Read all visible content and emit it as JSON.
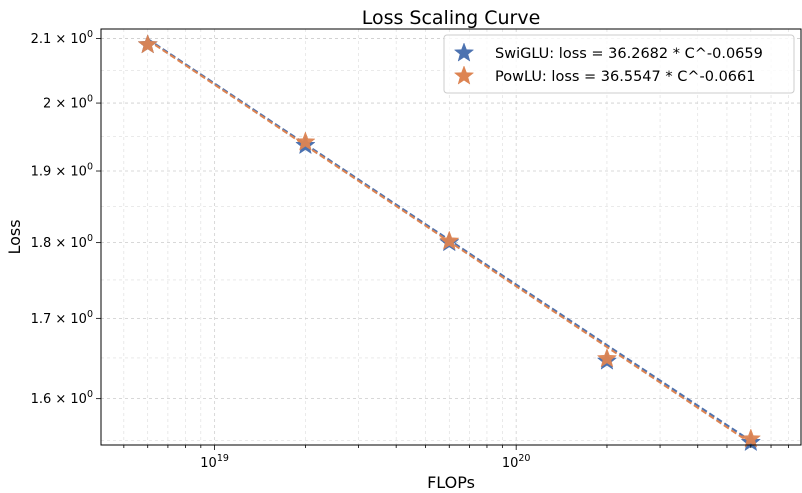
{
  "chart_data": {
    "type": "scatter",
    "title": "Loss Scaling Curve",
    "xlabel": "FLOPs",
    "ylabel": "Loss",
    "xscale": "log",
    "yscale": "log",
    "xlim": [
      4.2e+18,
      8.8e+20
    ],
    "ylim": [
      1.545,
      2.115
    ],
    "grid": true,
    "legend_position": "upper right",
    "x_ticks": [
      {
        "value": 1e+19,
        "base": "10",
        "exp": "19"
      },
      {
        "value": 1e+20,
        "base": "10",
        "exp": "20"
      }
    ],
    "y_ticks": [
      {
        "value": 1.6,
        "mantissa": "1.6",
        "base": "10",
        "exp": "0"
      },
      {
        "value": 1.7,
        "mantissa": "1.7",
        "base": "10",
        "exp": "0"
      },
      {
        "value": 1.8,
        "mantissa": "1.8",
        "base": "10",
        "exp": "0"
      },
      {
        "value": 1.9,
        "mantissa": "1.9",
        "base": "10",
        "exp": "0"
      },
      {
        "value": 2.0,
        "mantissa": "2",
        "base": "10",
        "exp": "0"
      },
      {
        "value": 2.1,
        "mantissa": "2.1",
        "base": "10",
        "exp": "0"
      }
    ],
    "series": [
      {
        "name": "SwiGLU: loss = 36.2682 * C^-0.0659",
        "color": "#4c72b0",
        "marker": "star",
        "fit": {
          "a": 36.2682,
          "b": -0.0659
        },
        "x": [
          6e+18,
          2e+19,
          6e+19,
          2e+20,
          6e+20
        ],
        "y": [
          2.09,
          1.937,
          1.8,
          1.646,
          1.548
        ]
      },
      {
        "name": "PowLU: loss = 36.5547 * C^-0.0661",
        "color": "#dd8452",
        "marker": "star",
        "fit": {
          "a": 36.5547,
          "b": -0.0661
        },
        "x": [
          6e+18,
          2e+19,
          6e+19,
          2e+20,
          6e+20
        ],
        "y": [
          2.09,
          1.942,
          1.802,
          1.649,
          1.552
        ]
      }
    ]
  }
}
